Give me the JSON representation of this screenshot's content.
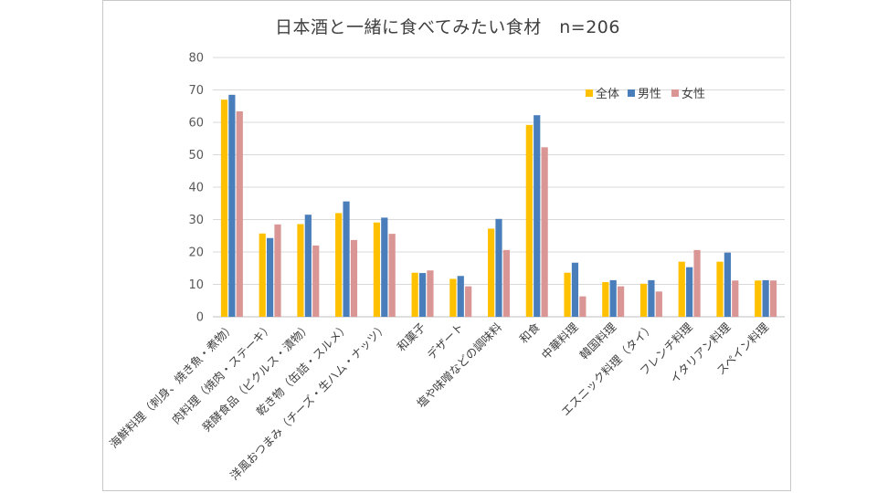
{
  "chart_data": {
    "type": "bar",
    "title": "日本酒と一緒に食べてみたい食材　n=206",
    "xlabel": "",
    "ylabel": "",
    "ylim": [
      0,
      80
    ],
    "yticks": [
      "0",
      "10",
      "20",
      "30",
      "40",
      "50",
      "60",
      "70",
      "80"
    ],
    "grid": true,
    "legend_position": "top-right",
    "categories": [
      "海鮮料理（刺身、焼き魚・煮物）",
      "肉料理（焼肉・ステーキ）",
      "発酵食品（ピクルス・漬物）",
      "乾き物（缶詰・スルメ）",
      "洋風おつまみ（チーズ・生ハム・ナッツ）",
      "和菓子",
      "デザート",
      "塩や味噌などの調味料",
      "和食",
      "中華料理",
      "韓国料理",
      "エスニック料理（タイ）",
      "フレンチ料理",
      "イタリアン料理",
      "スペイン料理"
    ],
    "series": [
      {
        "name": "全体",
        "color": "#ffc000",
        "values": [
          67.0,
          25.7,
          28.6,
          32.0,
          29.1,
          13.6,
          11.7,
          27.2,
          59.2,
          13.6,
          10.7,
          10.2,
          17.0,
          17.0,
          11.2
        ]
      },
      {
        "name": "男性",
        "color": "#4a7ebb",
        "values": [
          68.5,
          24.3,
          31.5,
          35.6,
          30.6,
          13.5,
          12.6,
          30.2,
          62.2,
          16.7,
          11.3,
          11.3,
          15.3,
          19.8,
          11.3
        ]
      },
      {
        "name": "女性",
        "color": "#d99694",
        "values": [
          63.4,
          28.5,
          22.0,
          23.7,
          25.6,
          14.3,
          9.4,
          20.6,
          52.3,
          6.3,
          9.4,
          7.8,
          20.6,
          11.2,
          11.2
        ]
      }
    ]
  }
}
